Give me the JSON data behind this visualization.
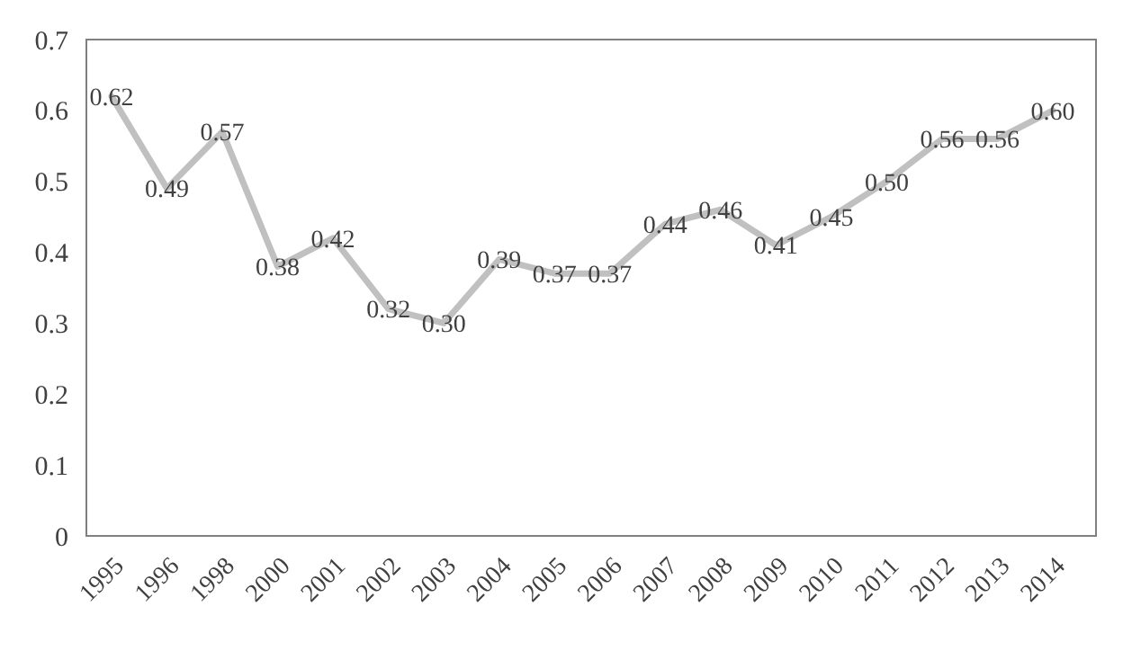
{
  "chart_data": {
    "type": "line",
    "categories": [
      "1995",
      "1996",
      "1998",
      "2000",
      "2001",
      "2002",
      "2003",
      "2004",
      "2005",
      "2006",
      "2007",
      "2008",
      "2009",
      "2010",
      "2011",
      "2012",
      "2013",
      "2014"
    ],
    "series": [
      {
        "color": "#c0c0c0",
        "values": [
          0.62,
          0.49,
          0.57,
          0.38,
          0.42,
          0.32,
          0.3,
          0.39,
          0.37,
          0.37,
          0.44,
          0.46,
          0.41,
          0.45,
          0.5,
          0.56,
          0.56,
          0.6
        ],
        "value_labels": [
          "0.62",
          "0.49",
          "0.57",
          "0.38",
          "0.42",
          "0.32",
          "0.30",
          "0.39",
          "0.37",
          "0.37",
          "0.44",
          "0.46",
          "0.41",
          "0.45",
          "0.50",
          "0.56",
          "0.56",
          "0.60"
        ]
      }
    ],
    "ylim": [
      0,
      0.7
    ],
    "yticks": [
      0,
      0.1,
      0.2,
      0.3,
      0.4,
      0.5,
      0.6,
      0.7
    ],
    "marker": "none",
    "line_style": "solid"
  }
}
